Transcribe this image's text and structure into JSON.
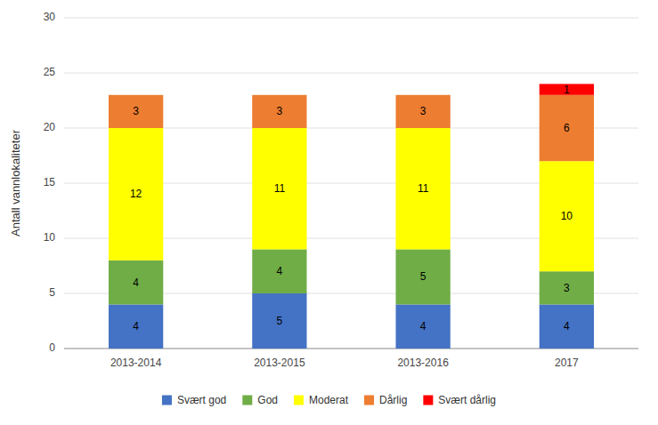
{
  "chart_data": {
    "type": "bar",
    "stacked": true,
    "categories": [
      "2013-2014",
      "2013-2015",
      "2013-2016",
      "2017"
    ],
    "series": [
      {
        "name": "Svært god",
        "color": "#4472c4",
        "values": [
          4,
          5,
          4,
          4
        ]
      },
      {
        "name": "God",
        "color": "#70ad47",
        "values": [
          4,
          4,
          5,
          3
        ]
      },
      {
        "name": "Moderat",
        "color": "#ffff00",
        "values": [
          12,
          11,
          11,
          10
        ]
      },
      {
        "name": "Dårlig",
        "color": "#ed7d31",
        "values": [
          3,
          3,
          3,
          6
        ]
      },
      {
        "name": "Svært dårlig",
        "color": "#ff0000",
        "values": [
          0,
          0,
          0,
          1
        ]
      }
    ],
    "ylabel": "Antall vannlokaliteter",
    "ylim": [
      0,
      30
    ],
    "yticks": [
      0,
      5,
      10,
      15,
      20,
      25,
      30
    ],
    "grid": true,
    "data_labels": true,
    "legend": "bottom"
  }
}
